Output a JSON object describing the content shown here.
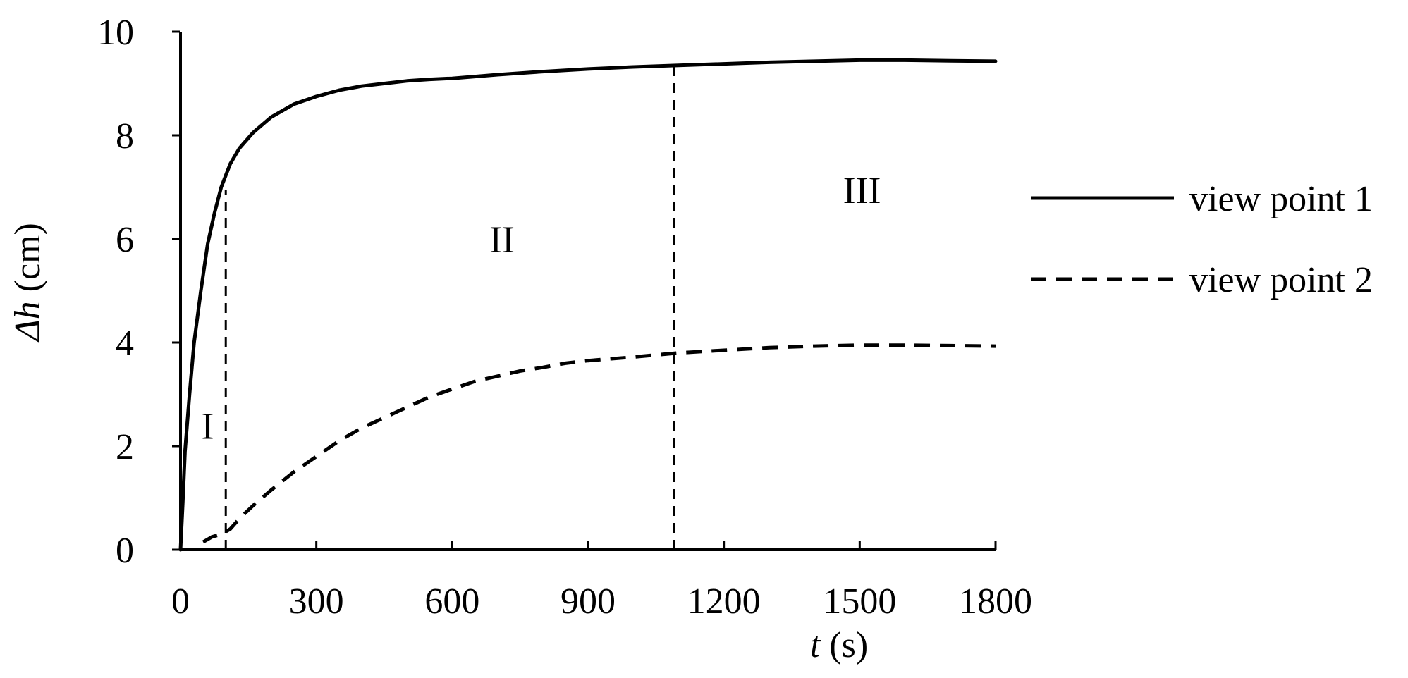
{
  "chart_data": {
    "type": "line",
    "xlabel_var": "t",
    "xlabel_unit": " (s)",
    "ylabel_var": "Δh",
    "ylabel_unit": " (cm)",
    "xlim": [
      0,
      1800
    ],
    "ylim": [
      0,
      10
    ],
    "xticks": [
      0,
      300,
      600,
      900,
      1200,
      1500,
      1800
    ],
    "yticks": [
      0,
      2,
      4,
      6,
      8,
      10
    ],
    "grid": false,
    "legend_position": "right",
    "series": [
      {
        "name": "view point 1",
        "style": "solid",
        "color": "#000000",
        "x": [
          0,
          5,
          10,
          20,
          30,
          45,
          60,
          75,
          90,
          110,
          130,
          160,
          200,
          250,
          300,
          350,
          400,
          450,
          500,
          550,
          600,
          700,
          800,
          900,
          1000,
          1100,
          1200,
          1300,
          1400,
          1500,
          1600,
          1700,
          1800
        ],
        "y": [
          0,
          0.9,
          1.9,
          3.0,
          4.0,
          5.0,
          5.9,
          6.5,
          7.0,
          7.45,
          7.75,
          8.05,
          8.35,
          8.6,
          8.75,
          8.87,
          8.95,
          9.0,
          9.05,
          9.08,
          9.1,
          9.17,
          9.23,
          9.28,
          9.32,
          9.35,
          9.38,
          9.41,
          9.43,
          9.45,
          9.45,
          9.44,
          9.43
        ]
      },
      {
        "name": "view point 2",
        "style": "dashed",
        "color": "#000000",
        "x": [
          50,
          70,
          90,
          110,
          130,
          160,
          200,
          250,
          300,
          350,
          400,
          450,
          500,
          550,
          600,
          650,
          700,
          750,
          800,
          850,
          900,
          1000,
          1100,
          1200,
          1300,
          1400,
          1500,
          1600,
          1700,
          1800
        ],
        "y": [
          0.15,
          0.25,
          0.3,
          0.4,
          0.6,
          0.85,
          1.15,
          1.5,
          1.8,
          2.1,
          2.35,
          2.55,
          2.75,
          2.95,
          3.1,
          3.25,
          3.35,
          3.45,
          3.52,
          3.6,
          3.65,
          3.72,
          3.8,
          3.85,
          3.9,
          3.93,
          3.95,
          3.95,
          3.94,
          3.93
        ]
      }
    ],
    "boundaries": [
      {
        "x": 100,
        "y_top": 6.95
      },
      {
        "x": 1090,
        "y_top": 9.35
      }
    ],
    "regions": [
      {
        "label": "I",
        "x": 60,
        "y": 2.4
      },
      {
        "label": "II",
        "x": 710,
        "y": 6.0
      },
      {
        "label": "III",
        "x": 1505,
        "y": 6.95
      }
    ]
  }
}
